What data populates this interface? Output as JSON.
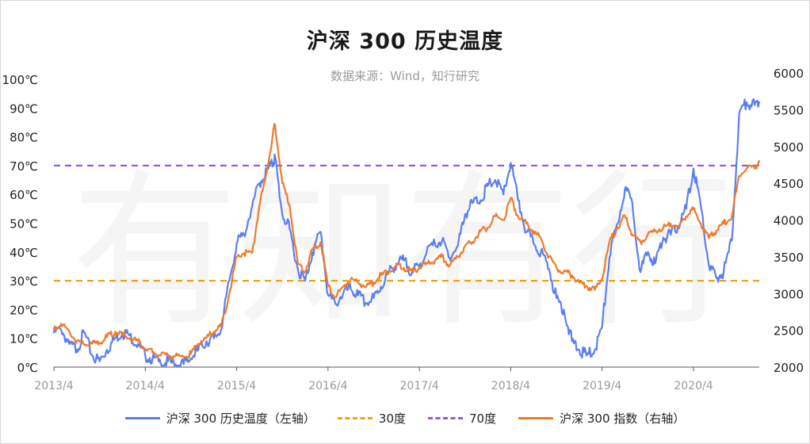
{
  "chart_data": {
    "type": "line",
    "title": "沪深 300 历史温度",
    "subtitle": "数据来源：Wind，知行研究",
    "watermark": "有知有行",
    "x_ticks": [
      "2013/4",
      "2014/4",
      "2015/4",
      "2016/4",
      "2017/4",
      "2018/4",
      "2019/4",
      "2020/4"
    ],
    "y_left": {
      "min": 0,
      "max": 100,
      "ticks": [
        "0℃",
        "10℃",
        "20℃",
        "30℃",
        "40℃",
        "50℃",
        "60℃",
        "70℃",
        "80℃",
        "90℃",
        "100℃"
      ]
    },
    "y_right": {
      "min": 2000,
      "max": 6000,
      "ticks": [
        "2000",
        "2500",
        "3000",
        "3500",
        "4000",
        "4500",
        "5000",
        "5500",
        "6000"
      ]
    },
    "reference_lines": [
      {
        "name": "30度",
        "value": 30,
        "color": "#e8a317"
      },
      {
        "name": "70度",
        "value": 70,
        "color": "#9b59d0"
      }
    ],
    "x_range": [
      2013.0,
      2020.72
    ],
    "series": [
      {
        "name": "沪深 300 历史温度（左轴）",
        "axis": "left",
        "color": "#5b7ff0",
        "points": [
          [
            2013.0,
            12
          ],
          [
            2013.08,
            13
          ],
          [
            2013.17,
            8
          ],
          [
            2013.25,
            6
          ],
          [
            2013.33,
            12
          ],
          [
            2013.42,
            4
          ],
          [
            2013.5,
            2
          ],
          [
            2013.58,
            6
          ],
          [
            2013.67,
            10
          ],
          [
            2013.75,
            12
          ],
          [
            2013.83,
            11
          ],
          [
            2013.92,
            8
          ],
          [
            2014.0,
            4
          ],
          [
            2014.08,
            3
          ],
          [
            2014.17,
            1
          ],
          [
            2014.25,
            2
          ],
          [
            2014.33,
            1
          ],
          [
            2014.42,
            1
          ],
          [
            2014.5,
            3
          ],
          [
            2014.58,
            6
          ],
          [
            2014.67,
            9
          ],
          [
            2014.75,
            10
          ],
          [
            2014.83,
            13
          ],
          [
            2014.92,
            30
          ],
          [
            2015.0,
            43
          ],
          [
            2015.08,
            46
          ],
          [
            2015.17,
            56
          ],
          [
            2015.25,
            64
          ],
          [
            2015.33,
            68
          ],
          [
            2015.4,
            71
          ],
          [
            2015.42,
            73
          ],
          [
            2015.5,
            53
          ],
          [
            2015.58,
            48
          ],
          [
            2015.67,
            34
          ],
          [
            2015.75,
            30
          ],
          [
            2015.83,
            40
          ],
          [
            2015.92,
            47
          ],
          [
            2016.0,
            25
          ],
          [
            2016.08,
            22
          ],
          [
            2016.17,
            26
          ],
          [
            2016.25,
            27
          ],
          [
            2016.33,
            25
          ],
          [
            2016.42,
            22
          ],
          [
            2016.5,
            24
          ],
          [
            2016.58,
            28
          ],
          [
            2016.67,
            33
          ],
          [
            2016.75,
            36
          ],
          [
            2016.83,
            37
          ],
          [
            2016.92,
            33
          ],
          [
            2017.0,
            35
          ],
          [
            2017.08,
            40
          ],
          [
            2017.17,
            43
          ],
          [
            2017.25,
            44
          ],
          [
            2017.33,
            38
          ],
          [
            2017.42,
            42
          ],
          [
            2017.5,
            53
          ],
          [
            2017.58,
            57
          ],
          [
            2017.67,
            58
          ],
          [
            2017.75,
            63
          ],
          [
            2017.83,
            65
          ],
          [
            2017.92,
            60
          ],
          [
            2018.0,
            71
          ],
          [
            2018.08,
            58
          ],
          [
            2018.17,
            47
          ],
          [
            2018.25,
            43
          ],
          [
            2018.33,
            40
          ],
          [
            2018.42,
            34
          ],
          [
            2018.5,
            24
          ],
          [
            2018.58,
            20
          ],
          [
            2018.67,
            9
          ],
          [
            2018.75,
            6
          ],
          [
            2018.83,
            4
          ],
          [
            2018.92,
            6
          ],
          [
            2019.0,
            14
          ],
          [
            2019.08,
            38
          ],
          [
            2019.17,
            50
          ],
          [
            2019.25,
            62
          ],
          [
            2019.33,
            57
          ],
          [
            2019.42,
            33
          ],
          [
            2019.5,
            40
          ],
          [
            2019.58,
            36
          ],
          [
            2019.67,
            45
          ],
          [
            2019.75,
            46
          ],
          [
            2019.83,
            49
          ],
          [
            2019.92,
            55
          ],
          [
            2020.0,
            69
          ],
          [
            2020.08,
            56
          ],
          [
            2020.17,
            35
          ],
          [
            2020.25,
            31
          ],
          [
            2020.33,
            33
          ],
          [
            2020.42,
            44
          ],
          [
            2020.5,
            88
          ],
          [
            2020.58,
            92
          ],
          [
            2020.67,
            91
          ],
          [
            2020.72,
            92
          ]
        ]
      },
      {
        "name": "沪深 300 指数（右轴）",
        "axis": "right",
        "color": "#f07a2a",
        "points": [
          [
            2013.0,
            2530
          ],
          [
            2013.08,
            2590
          ],
          [
            2013.17,
            2480
          ],
          [
            2013.25,
            2350
          ],
          [
            2013.33,
            2310
          ],
          [
            2013.42,
            2320
          ],
          [
            2013.5,
            2330
          ],
          [
            2013.58,
            2410
          ],
          [
            2013.67,
            2480
          ],
          [
            2013.75,
            2440
          ],
          [
            2013.83,
            2390
          ],
          [
            2013.92,
            2350
          ],
          [
            2014.0,
            2250
          ],
          [
            2014.08,
            2200
          ],
          [
            2014.17,
            2160
          ],
          [
            2014.25,
            2170
          ],
          [
            2014.33,
            2150
          ],
          [
            2014.42,
            2140
          ],
          [
            2014.5,
            2180
          ],
          [
            2014.58,
            2320
          ],
          [
            2014.67,
            2400
          ],
          [
            2014.75,
            2480
          ],
          [
            2014.83,
            2550
          ],
          [
            2014.92,
            3000
          ],
          [
            2015.0,
            3500
          ],
          [
            2015.08,
            3550
          ],
          [
            2015.17,
            3550
          ],
          [
            2015.25,
            4200
          ],
          [
            2015.33,
            4650
          ],
          [
            2015.4,
            5200
          ],
          [
            2015.42,
            5300
          ],
          [
            2015.5,
            4500
          ],
          [
            2015.58,
            4200
          ],
          [
            2015.67,
            3400
          ],
          [
            2015.75,
            3300
          ],
          [
            2015.83,
            3600
          ],
          [
            2015.92,
            3700
          ],
          [
            2016.0,
            3100
          ],
          [
            2016.08,
            2950
          ],
          [
            2016.17,
            3100
          ],
          [
            2016.25,
            3200
          ],
          [
            2016.33,
            3150
          ],
          [
            2016.42,
            3100
          ],
          [
            2016.5,
            3150
          ],
          [
            2016.58,
            3250
          ],
          [
            2016.67,
            3300
          ],
          [
            2016.75,
            3380
          ],
          [
            2016.83,
            3350
          ],
          [
            2016.92,
            3300
          ],
          [
            2017.0,
            3350
          ],
          [
            2017.08,
            3400
          ],
          [
            2017.17,
            3450
          ],
          [
            2017.25,
            3500
          ],
          [
            2017.33,
            3380
          ],
          [
            2017.42,
            3500
          ],
          [
            2017.5,
            3650
          ],
          [
            2017.58,
            3700
          ],
          [
            2017.67,
            3850
          ],
          [
            2017.75,
            3900
          ],
          [
            2017.83,
            4050
          ],
          [
            2017.92,
            4000
          ],
          [
            2018.0,
            4300
          ],
          [
            2018.08,
            4050
          ],
          [
            2018.17,
            3950
          ],
          [
            2018.25,
            3850
          ],
          [
            2018.33,
            3750
          ],
          [
            2018.42,
            3500
          ],
          [
            2018.5,
            3350
          ],
          [
            2018.58,
            3300
          ],
          [
            2018.67,
            3250
          ],
          [
            2018.75,
            3150
          ],
          [
            2018.83,
            3100
          ],
          [
            2018.92,
            3050
          ],
          [
            2019.0,
            3200
          ],
          [
            2019.08,
            3700
          ],
          [
            2019.17,
            3900
          ],
          [
            2019.25,
            4050
          ],
          [
            2019.33,
            3800
          ],
          [
            2019.42,
            3700
          ],
          [
            2019.5,
            3800
          ],
          [
            2019.58,
            3850
          ],
          [
            2019.67,
            3900
          ],
          [
            2019.75,
            3950
          ],
          [
            2019.83,
            3900
          ],
          [
            2019.92,
            4050
          ],
          [
            2020.0,
            4150
          ],
          [
            2020.08,
            3950
          ],
          [
            2020.17,
            3750
          ],
          [
            2020.25,
            3850
          ],
          [
            2020.33,
            3950
          ],
          [
            2020.42,
            4050
          ],
          [
            2020.5,
            4600
          ],
          [
            2020.58,
            4700
          ],
          [
            2020.67,
            4700
          ],
          [
            2020.72,
            4800
          ]
        ]
      }
    ],
    "legend": {
      "placement": "bottom",
      "entries": [
        {
          "label": "沪深 300 历史温度（左轴）",
          "style": "solid",
          "color": "#5b7ff0"
        },
        {
          "label": "30度",
          "style": "dashed",
          "color": "#e8a317"
        },
        {
          "label": "70度",
          "style": "dashed",
          "color": "#9b59d0"
        },
        {
          "label": "沪深 300 指数（右轴）",
          "style": "solid",
          "color": "#f07a2a"
        }
      ]
    }
  }
}
